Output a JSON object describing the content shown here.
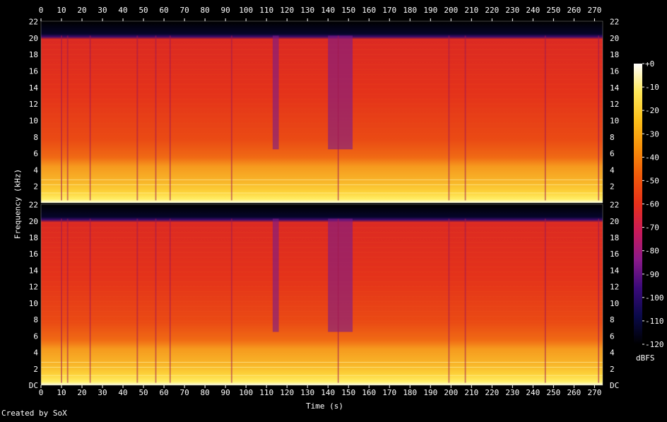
{
  "chart_data": {
    "type": "heatmap",
    "title": "",
    "xlabel": "Time (s)",
    "ylabel": "Frequency (kHz)",
    "x_ticks": [
      0,
      10,
      20,
      30,
      40,
      50,
      60,
      70,
      80,
      90,
      100,
      110,
      120,
      130,
      140,
      150,
      160,
      170,
      180,
      190,
      200,
      210,
      220,
      230,
      240,
      250,
      260,
      270
    ],
    "xlim": [
      0,
      274
    ],
    "ylim": [
      0,
      22.05
    ],
    "y_ticks": [
      "DC",
      "2",
      "4",
      "6",
      "8",
      "10",
      "12",
      "14",
      "16",
      "18",
      "20",
      "22"
    ],
    "y_ticks_top_panel": [
      "2",
      "4",
      "6",
      "8",
      "10",
      "12",
      "14",
      "16",
      "18",
      "20",
      "22"
    ],
    "channels": 2,
    "colorbar": {
      "label": "dBFS",
      "ticks": [
        "+0",
        "-10",
        "-20",
        "-30",
        "-40",
        "-50",
        "-60",
        "-70",
        "-80",
        "-90",
        "-100",
        "-110",
        "-120"
      ],
      "range": [
        -120,
        0
      ],
      "colors": [
        "#000000",
        "#0a0a4a",
        "#3a0a7a",
        "#8a1a8a",
        "#c81a5a",
        "#e8301a",
        "#f05a0a",
        "#f8900a",
        "#fcc01a",
        "#fee85a",
        "#ffffff"
      ]
    },
    "cutoff_khz": 20.3,
    "energy_profile_db": {
      "description_bands_khz": [
        0,
        1.2,
        2.5,
        5.5,
        20.3,
        22.05
      ],
      "levels": [
        -20,
        -30,
        -38,
        -50,
        -110
      ]
    },
    "quiet_segments_s": [
      [
        113,
        116
      ],
      [
        140,
        152
      ]
    ],
    "transients_s": [
      10,
      13,
      24,
      47,
      56,
      63,
      93,
      145,
      199,
      207,
      246,
      272
    ]
  },
  "footer": {
    "credit": "Created by SoX"
  }
}
